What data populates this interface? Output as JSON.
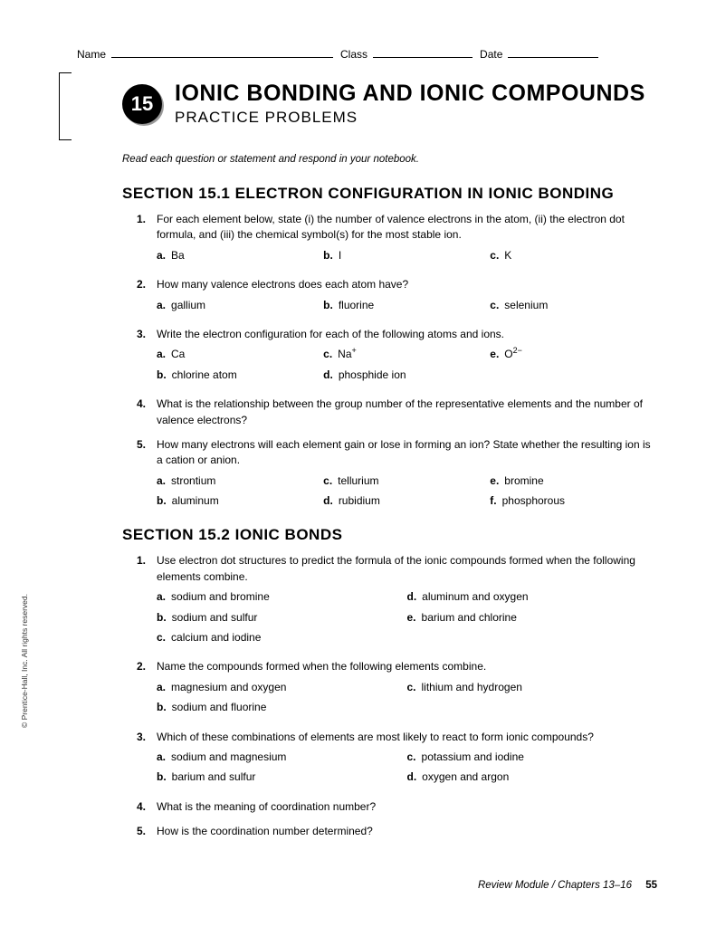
{
  "header": {
    "name_label": "Name",
    "class_label": "Class",
    "date_label": "Date"
  },
  "chapter": {
    "number": "15",
    "title": "IONIC BONDING AND IONIC COMPOUNDS",
    "subtitle": "PRACTICE PROBLEMS"
  },
  "instructions": "Read each question or statement and respond in your notebook.",
  "sections": [
    {
      "title": "SECTION 15.1  ELECTRON CONFIGURATION IN IONIC BONDING",
      "questions": [
        {
          "num": "1.",
          "text": "For each element below, state (i) the number of valence electrons in the atom, (ii) the electron dot formula, and (iii) the chemical symbol(s) for the most stable ion.",
          "cols": 3,
          "choices": [
            {
              "l": "a.",
              "t": "Ba"
            },
            {
              "l": "b.",
              "t": "I"
            },
            {
              "l": "c.",
              "t": "K"
            }
          ]
        },
        {
          "num": "2.",
          "text": "How many valence electrons does each atom have?",
          "cols": 3,
          "choices": [
            {
              "l": "a.",
              "t": "gallium"
            },
            {
              "l": "b.",
              "t": "fluorine"
            },
            {
              "l": "c.",
              "t": "selenium"
            }
          ]
        },
        {
          "num": "3.",
          "text": "Write the electron configuration for each of the following atoms and ions.",
          "cols": 3,
          "choices": [
            {
              "l": "a.",
              "t": "Ca"
            },
            {
              "l": "c.",
              "t_html": "Na<sup>+</sup>"
            },
            {
              "l": "e.",
              "t_html": "O<sup>2−</sup>"
            },
            {
              "l": "b.",
              "t": "chlorine atom"
            },
            {
              "l": "d.",
              "t": "phosphide ion"
            }
          ]
        },
        {
          "num": "4.",
          "text": "What is the relationship between the group number of the representative elements and the number of valence electrons?"
        },
        {
          "num": "5.",
          "text": "How many electrons will each element gain or lose in forming an ion? State whether the resulting ion is a cation or anion.",
          "cols": 3,
          "choices": [
            {
              "l": "a.",
              "t": "strontium"
            },
            {
              "l": "c.",
              "t": "tellurium"
            },
            {
              "l": "e.",
              "t": "bromine"
            },
            {
              "l": "b.",
              "t": "aluminum"
            },
            {
              "l": "d.",
              "t": "rubidium"
            },
            {
              "l": "f.",
              "t": "phosphorous"
            }
          ]
        }
      ]
    },
    {
      "title": "SECTION 15.2  IONIC BONDS",
      "questions": [
        {
          "num": "1.",
          "text": "Use electron dot structures to predict the formula of the ionic compounds formed when the following elements combine.",
          "cols": 2,
          "choices": [
            {
              "l": "a.",
              "t": "sodium and bromine"
            },
            {
              "l": "d.",
              "t": "aluminum and oxygen"
            },
            {
              "l": "b.",
              "t": "sodium and sulfur"
            },
            {
              "l": "e.",
              "t": "barium and chlorine"
            },
            {
              "l": "c.",
              "t": "calcium and iodine"
            }
          ]
        },
        {
          "num": "2.",
          "text": "Name the compounds formed when the following elements combine.",
          "cols": 2,
          "choices": [
            {
              "l": "a.",
              "t": "magnesium and oxygen"
            },
            {
              "l": "c.",
              "t": "lithium and hydrogen"
            },
            {
              "l": "b.",
              "t": "sodium and fluorine"
            }
          ]
        },
        {
          "num": "3.",
          "text": "Which of these combinations of elements are most likely to react to form ionic compounds?",
          "cols": 2,
          "choices": [
            {
              "l": "a.",
              "t": "sodium and magnesium"
            },
            {
              "l": "c.",
              "t": "potassium and iodine"
            },
            {
              "l": "b.",
              "t": "barium and sulfur"
            },
            {
              "l": "d.",
              "t": "oxygen and argon"
            }
          ]
        },
        {
          "num": "4.",
          "text": "What is the meaning of coordination number?"
        },
        {
          "num": "5.",
          "text": "How is the coordination number determined?"
        }
      ]
    }
  ],
  "copyright": "© Prentice-Hall, Inc. All rights reserved.",
  "footer": {
    "text": "Review Module / Chapters 13–16",
    "page": "55"
  }
}
